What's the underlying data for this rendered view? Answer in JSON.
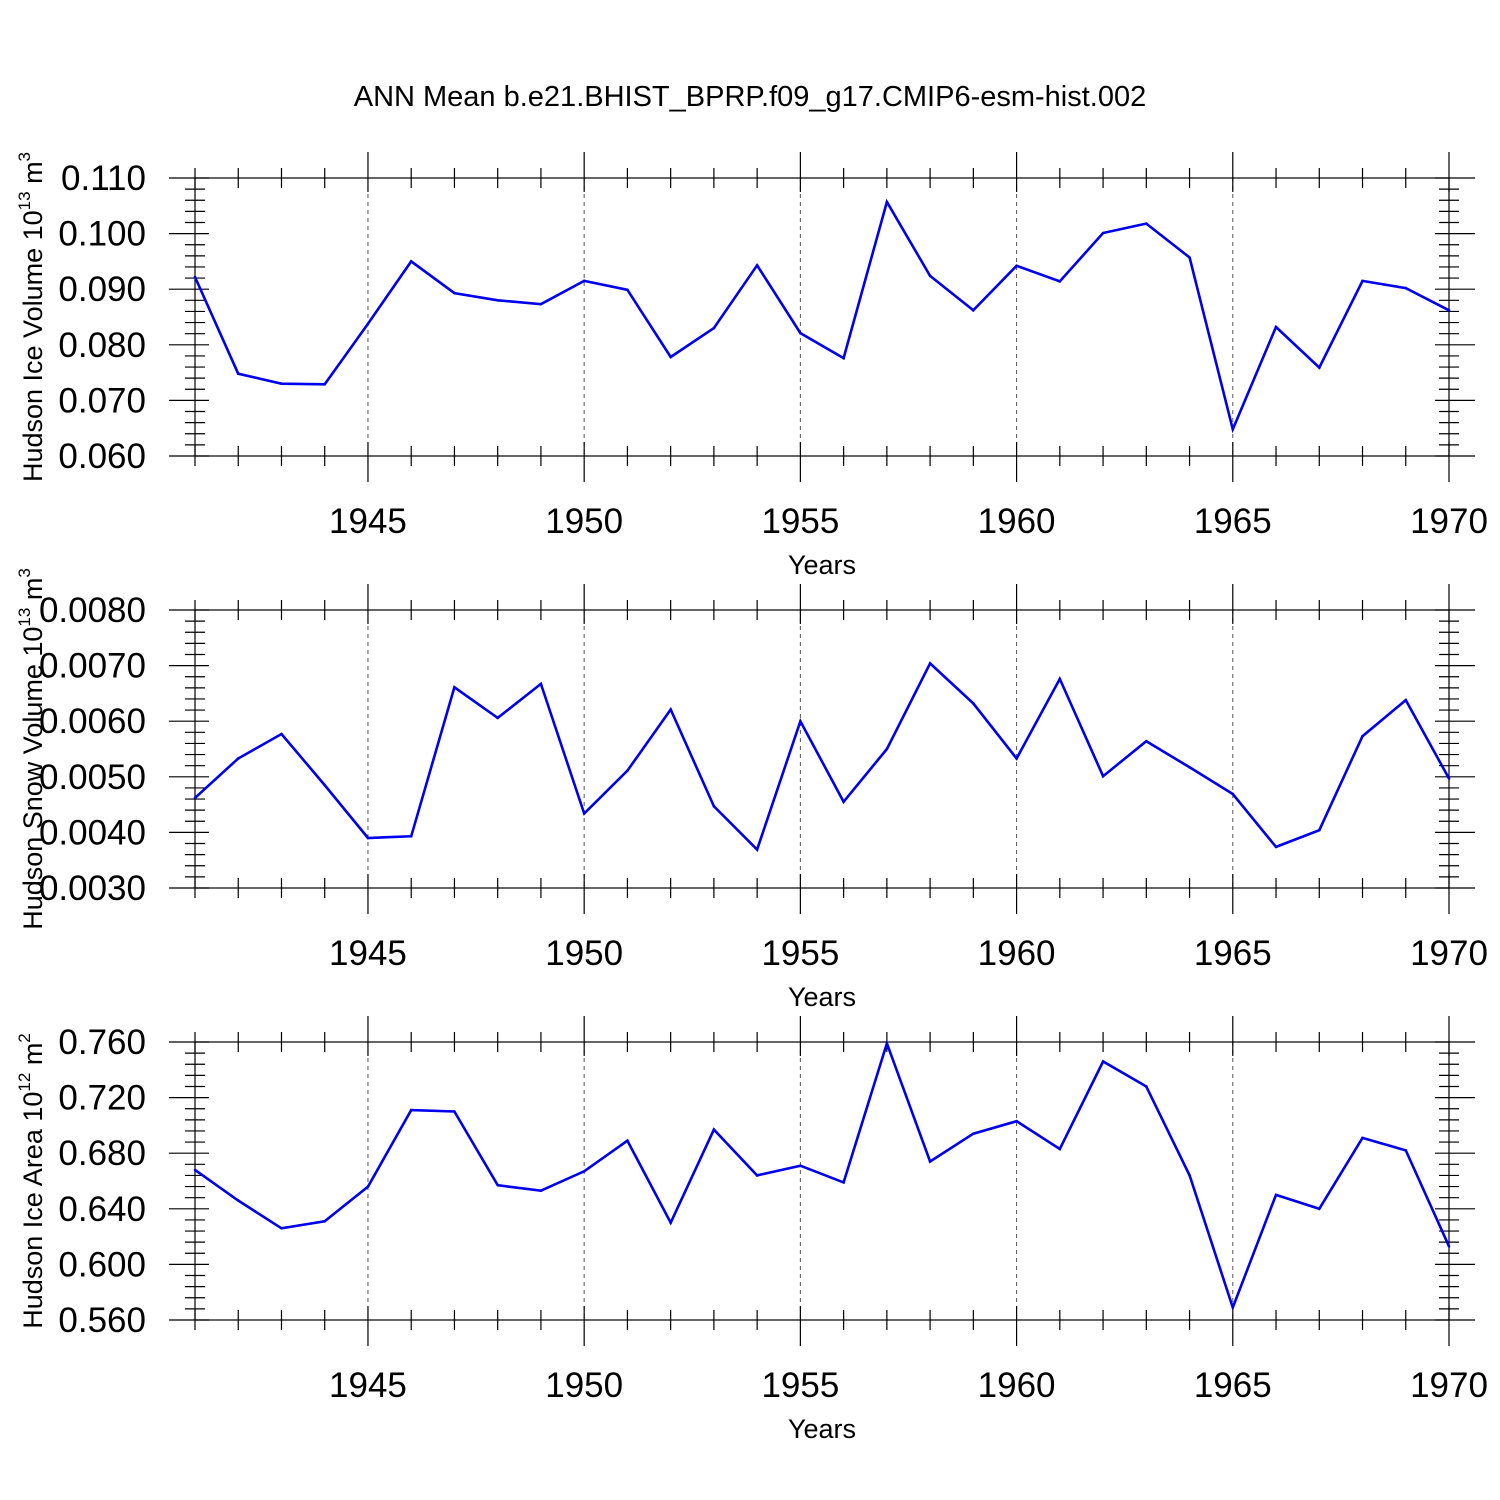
{
  "title": "ANN Mean b.e21.BHIST_BPRP.f09_g17.CMIP6-esm-hist.002",
  "line_color": "#0000ee",
  "chart_data": [
    {
      "type": "line",
      "title": "ANN Mean b.e21.BHIST_BPRP.f09_g17.CMIP6-esm-hist.002",
      "xlabel": "Years",
      "ylabel": "Hudson Ice Volume 10",
      "ylabel_exp": "13",
      "ylabel_unit": "m",
      "ylabel_unit_exp": "3",
      "xlim": [
        1941,
        1970
      ],
      "ylim": [
        0.06,
        0.11
      ],
      "x_ticks": [
        1945,
        1950,
        1955,
        1960,
        1965,
        1970
      ],
      "x_tick_labels": [
        "1945",
        "1950",
        "1955",
        "1960",
        "1965",
        "1970"
      ],
      "y_ticks": [
        0.06,
        0.07,
        0.08,
        0.09,
        0.1,
        0.11
      ],
      "y_tick_labels": [
        "0.060",
        "0.070",
        "0.080",
        "0.090",
        "0.100",
        "0.110"
      ],
      "grid": "vertical dashed at major x ticks",
      "x": [
        1941,
        1942,
        1943,
        1944,
        1945,
        1946,
        1947,
        1948,
        1949,
        1950,
        1951,
        1952,
        1953,
        1954,
        1955,
        1956,
        1957,
        1958,
        1959,
        1960,
        1961,
        1962,
        1963,
        1964,
        1965,
        1966,
        1967,
        1968,
        1969,
        1970
      ],
      "series": [
        {
          "values": [
            0.0922,
            0.0748,
            0.073,
            0.0729,
            0.0838,
            0.095,
            0.0893,
            0.088,
            0.0873,
            0.0915,
            0.0899,
            0.0778,
            0.083,
            0.0943,
            0.0821,
            0.0776,
            0.1057,
            0.0924,
            0.0862,
            0.0942,
            0.0914,
            0.1001,
            0.1018,
            0.0957,
            0.0648,
            0.0832,
            0.0759,
            0.0915,
            0.0902,
            0.0862
          ]
        }
      ]
    },
    {
      "type": "line",
      "xlabel": "Years",
      "ylabel": "Hudson Snow Volume 10",
      "ylabel_exp": "13",
      "ylabel_unit": "m",
      "ylabel_unit_exp": "3",
      "xlim": [
        1941,
        1970
      ],
      "ylim": [
        0.003,
        0.008
      ],
      "x_ticks": [
        1945,
        1950,
        1955,
        1960,
        1965,
        1970
      ],
      "x_tick_labels": [
        "1945",
        "1950",
        "1955",
        "1960",
        "1965",
        "1970"
      ],
      "y_ticks": [
        0.003,
        0.004,
        0.005,
        0.006,
        0.007,
        0.008
      ],
      "y_tick_labels": [
        "0.0030",
        "0.0040",
        "0.0050",
        "0.0060",
        "0.0070",
        "0.0080"
      ],
      "grid": "vertical dashed at major x ticks",
      "x": [
        1941,
        1942,
        1943,
        1944,
        1945,
        1946,
        1947,
        1948,
        1949,
        1950,
        1951,
        1952,
        1953,
        1954,
        1955,
        1956,
        1957,
        1958,
        1959,
        1960,
        1961,
        1962,
        1963,
        1964,
        1965,
        1966,
        1967,
        1968,
        1969,
        1970
      ],
      "series": [
        {
          "values": [
            0.00462,
            0.00533,
            0.00577,
            0.00485,
            0.0039,
            0.00393,
            0.00661,
            0.00606,
            0.00667,
            0.00434,
            0.00511,
            0.00621,
            0.00447,
            0.00369,
            0.006,
            0.00455,
            0.0055,
            0.00704,
            0.00632,
            0.00533,
            0.00676,
            0.00501,
            0.00564,
            0.00517,
            0.00469,
            0.00374,
            0.00404,
            0.00573,
            0.00638,
            0.00497
          ]
        }
      ]
    },
    {
      "type": "line",
      "xlabel": "Years",
      "ylabel": "Hudson Ice Area 10",
      "ylabel_exp": "12",
      "ylabel_unit": "m",
      "ylabel_unit_exp": "2",
      "xlim": [
        1941,
        1970
      ],
      "ylim": [
        0.56,
        0.76
      ],
      "x_ticks": [
        1945,
        1950,
        1955,
        1960,
        1965,
        1970
      ],
      "x_tick_labels": [
        "1945",
        "1950",
        "1955",
        "1960",
        "1965",
        "1970"
      ],
      "y_ticks": [
        0.56,
        0.6,
        0.64,
        0.68,
        0.72,
        0.76
      ],
      "y_tick_labels": [
        "0.560",
        "0.600",
        "0.640",
        "0.680",
        "0.720",
        "0.760"
      ],
      "grid": "vertical dashed at major x ticks",
      "x": [
        1941,
        1942,
        1943,
        1944,
        1945,
        1946,
        1947,
        1948,
        1949,
        1950,
        1951,
        1952,
        1953,
        1954,
        1955,
        1956,
        1957,
        1958,
        1959,
        1960,
        1961,
        1962,
        1963,
        1964,
        1965,
        1966,
        1967,
        1968,
        1969,
        1970
      ],
      "series": [
        {
          "values": [
            0.668,
            0.646,
            0.626,
            0.631,
            0.656,
            0.711,
            0.71,
            0.657,
            0.653,
            0.667,
            0.689,
            0.63,
            0.697,
            0.664,
            0.671,
            0.659,
            0.759,
            0.674,
            0.694,
            0.703,
            0.683,
            0.746,
            0.728,
            0.664,
            0.569,
            0.65,
            0.64,
            0.691,
            0.682,
            0.613
          ]
        }
      ]
    }
  ]
}
